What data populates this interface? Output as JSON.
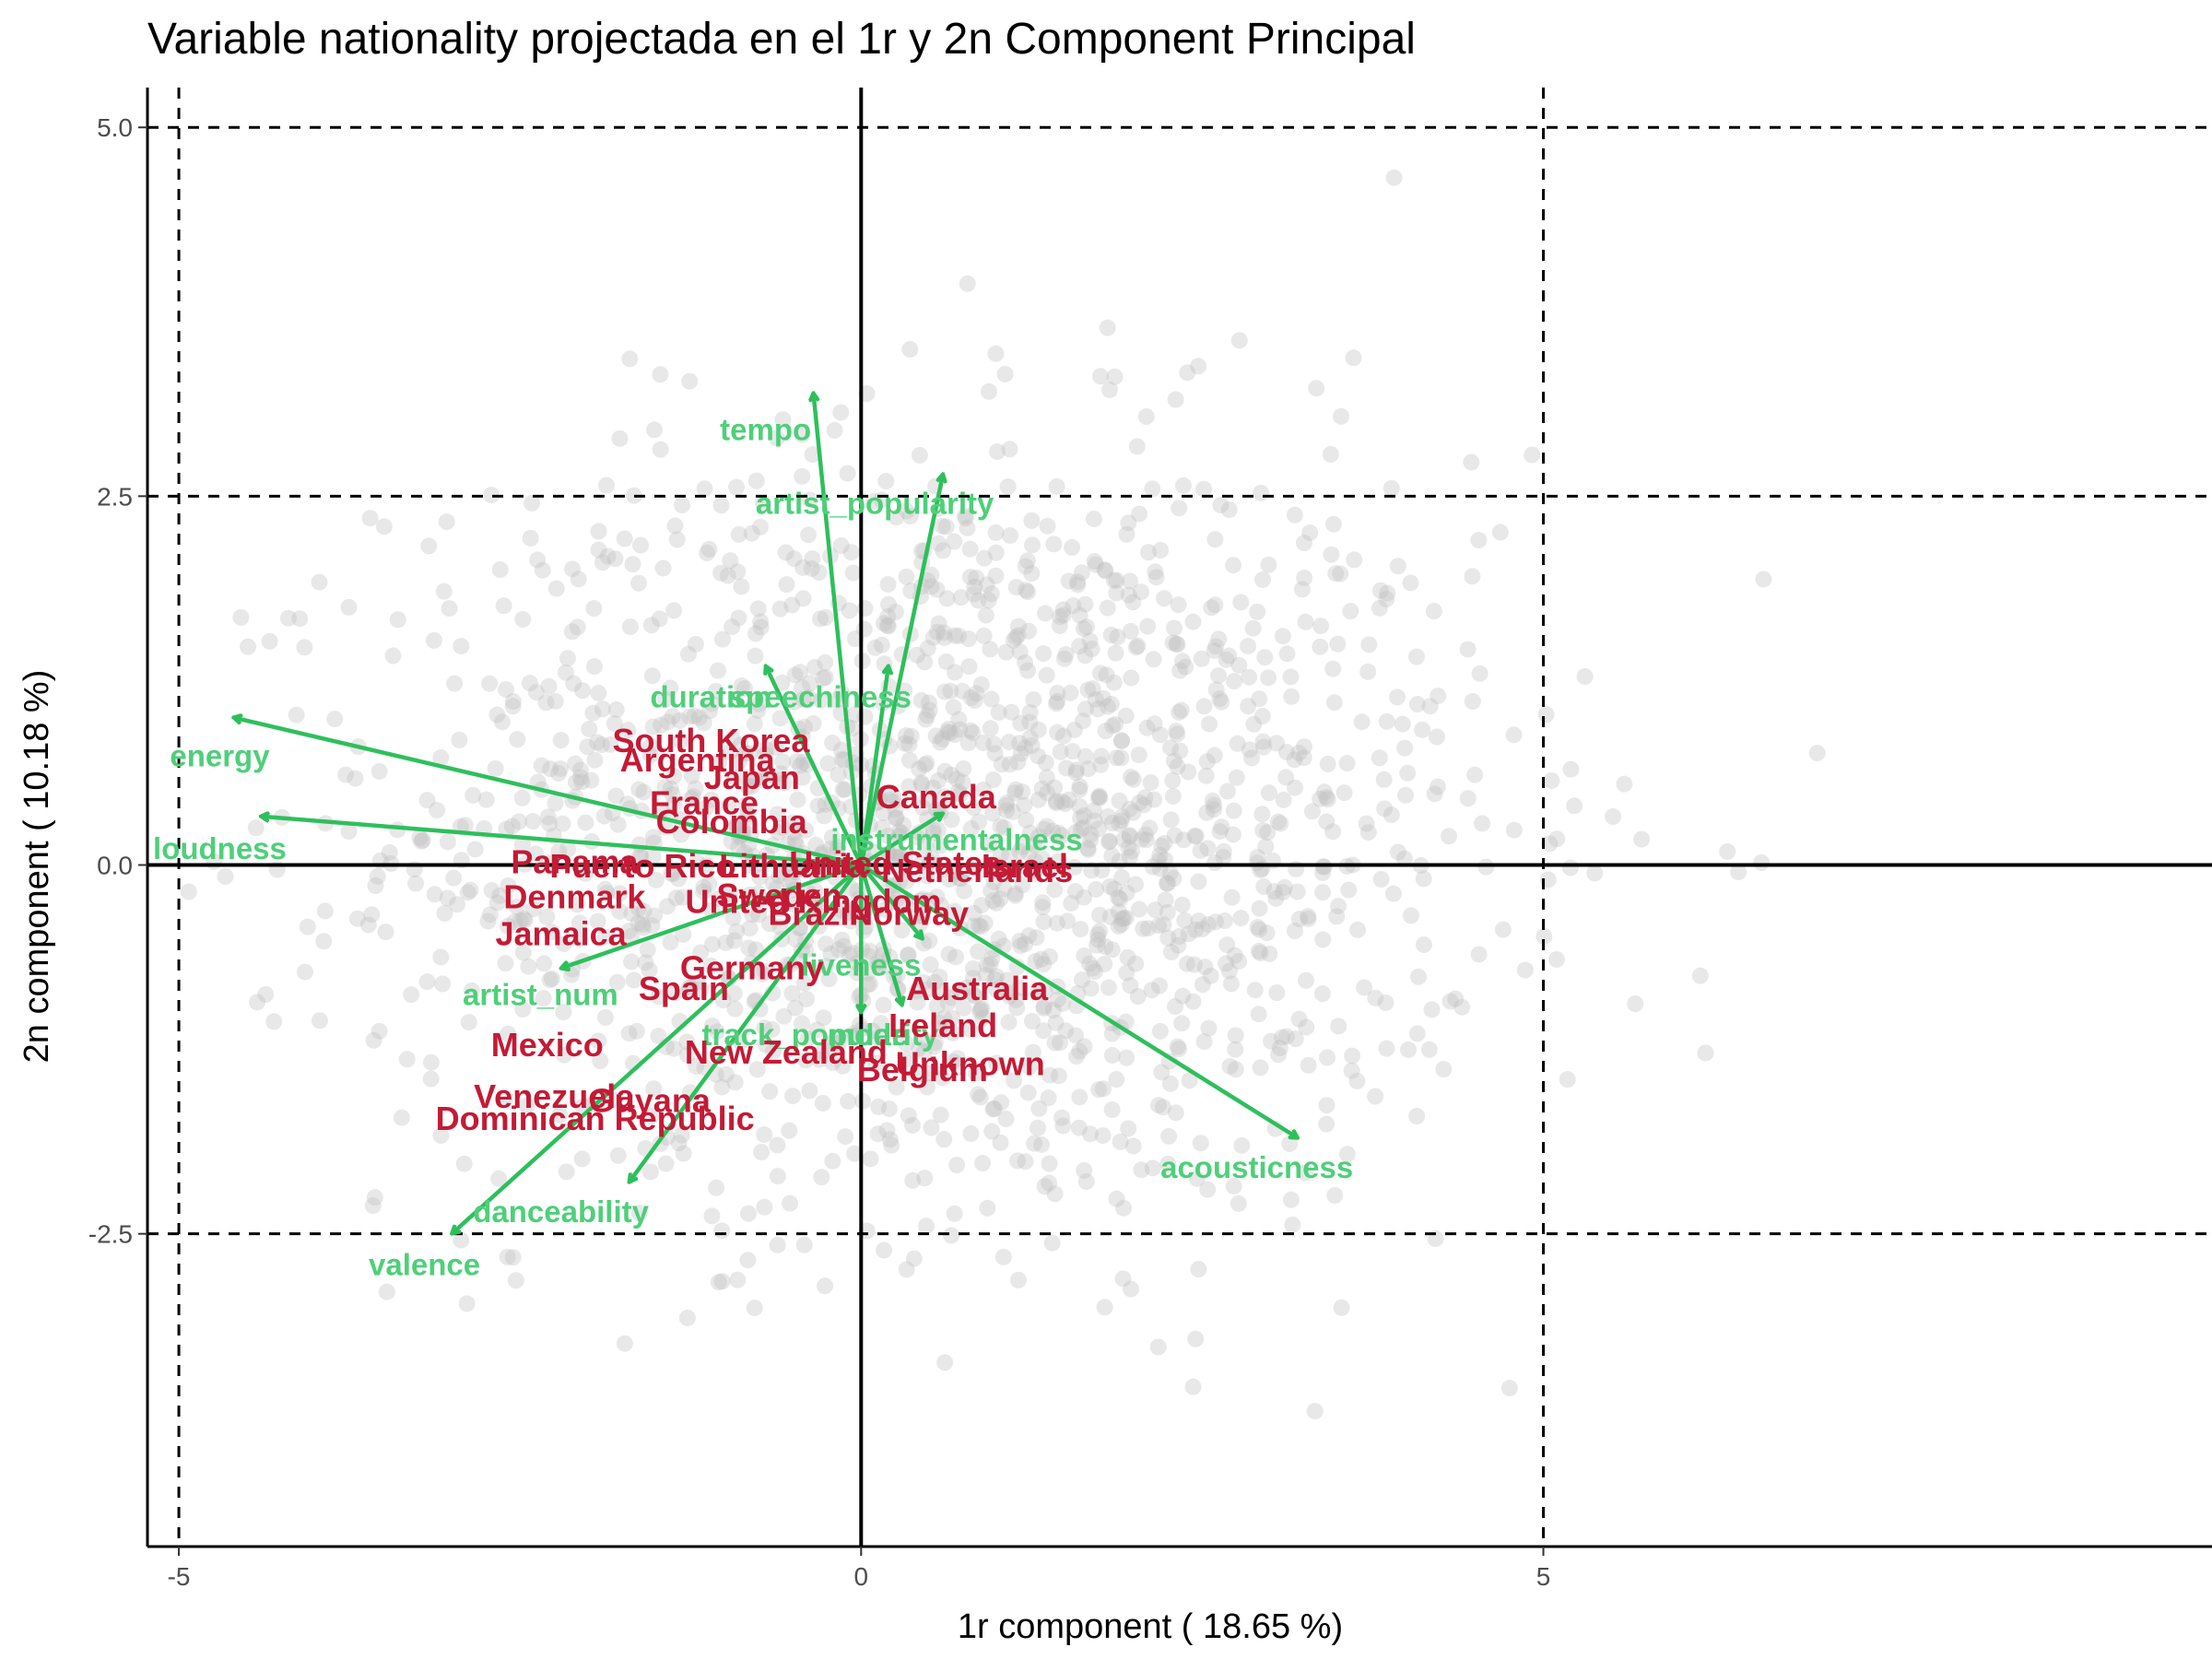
{
  "chart_data": {
    "type": "scatter",
    "title": "Variable nationality projectada en el 1r y 2n Component Principal",
    "xlabel": "1r component ( 18.65 %)",
    "ylabel": "2n component ( 10.18 %)",
    "xlim": [
      -5.23,
      9.9
    ],
    "ylim": [
      -4.62,
      5.27
    ],
    "x_ticks": [
      {
        "value": -5,
        "label": "-5"
      },
      {
        "value": 0,
        "label": "0"
      },
      {
        "value": 5,
        "label": "5"
      }
    ],
    "y_ticks": [
      {
        "value": 5,
        "label": "5.0"
      },
      {
        "value": 2.5,
        "label": "2.5"
      },
      {
        "value": 0,
        "label": "0.0"
      },
      {
        "value": -2.5,
        "label": "-2.5"
      }
    ],
    "reference_lines": {
      "solid_x": [
        0
      ],
      "solid_y": [
        0
      ],
      "dashed_x": [
        -5,
        5
      ],
      "dashed_y": [
        -2.5,
        2.5,
        5
      ]
    },
    "grid": false,
    "colors": {
      "points": "#bdbdbd",
      "arrows": "#2ebf5c",
      "variable_labels": "#4fcf7a",
      "category_labels": "#c41a35",
      "reference_lines": "#000000"
    },
    "point_cloud": {
      "x_mean": 0.6,
      "x_sd": 2.0,
      "y_mean": 0.2,
      "y_sd": 1.3,
      "count": 1800
    },
    "variables": [
      {
        "name": "tempo",
        "x": -0.35,
        "y": 3.2,
        "label_x": -0.7,
        "label_y": 2.88
      },
      {
        "name": "artist_popularity",
        "x": 0.6,
        "y": 2.65,
        "label_x": 0.1,
        "label_y": 2.38
      },
      {
        "name": "duration",
        "x": -0.7,
        "y": 1.35,
        "label_x": -1.1,
        "label_y": 1.07
      },
      {
        "name": "speechiness",
        "x": 0.2,
        "y": 1.35,
        "label_x": -0.3,
        "label_y": 1.07
      },
      {
        "name": "energy",
        "x": -4.6,
        "y": 1.0,
        "label_x": -4.7,
        "label_y": 0.67
      },
      {
        "name": "loudness",
        "x": -4.4,
        "y": 0.33,
        "label_x": -4.7,
        "label_y": 0.04
      },
      {
        "name": "artist_num",
        "x": -2.2,
        "y": -0.7,
        "label_x": -2.35,
        "label_y": -0.95
      },
      {
        "name": "liveness",
        "x": 0.45,
        "y": -0.5,
        "label_x": 0.0,
        "label_y": -0.75
      },
      {
        "name": "mode",
        "x": 0.3,
        "y": -0.95,
        "label_x": 0.05,
        "label_y": -1.22
      },
      {
        "name": "track_popularity",
        "x": 0.0,
        "y": -1.0,
        "label_x": -0.3,
        "label_y": -1.22
      },
      {
        "name": "instrumentalness",
        "x": 0.6,
        "y": 0.35,
        "label_x": 0.7,
        "label_y": 0.1
      },
      {
        "name": "danceability",
        "x": -1.7,
        "y": -2.15,
        "label_x": -2.2,
        "label_y": -2.42
      },
      {
        "name": "valence",
        "x": -3.0,
        "y": -2.5,
        "label_x": -3.2,
        "label_y": -2.78
      },
      {
        "name": "acousticness",
        "x": 3.2,
        "y": -1.85,
        "label_x": 2.9,
        "label_y": -2.12
      }
    ],
    "categories": [
      {
        "name": "South Korea",
        "x": -1.1,
        "y": 0.84
      },
      {
        "name": "Argentina",
        "x": -1.2,
        "y": 0.71
      },
      {
        "name": "Japan",
        "x": -0.8,
        "y": 0.59
      },
      {
        "name": "Canada",
        "x": 0.55,
        "y": 0.46
      },
      {
        "name": "France",
        "x": -1.15,
        "y": 0.42
      },
      {
        "name": "Colombia",
        "x": -0.95,
        "y": 0.29
      },
      {
        "name": "Panama",
        "x": -2.1,
        "y": 0.02
      },
      {
        "name": "Puerto Rico",
        "x": -1.6,
        "y": -0.01
      },
      {
        "name": "Lithuania",
        "x": -0.5,
        "y": -0.01
      },
      {
        "name": "United States",
        "x": 0.25,
        "y": 0.01
      },
      {
        "name": "Israel",
        "x": 1.2,
        "y": -0.01
      },
      {
        "name": "Netherlands",
        "x": 0.85,
        "y": -0.04
      },
      {
        "name": "Denmark",
        "x": -2.1,
        "y": -0.22
      },
      {
        "name": "United Kingdom",
        "x": -0.35,
        "y": -0.25
      },
      {
        "name": "Sweden",
        "x": -0.6,
        "y": -0.21
      },
      {
        "name": "Brazil",
        "x": -0.35,
        "y": -0.33
      },
      {
        "name": "Norway",
        "x": 0.35,
        "y": -0.33
      },
      {
        "name": "Jamaica",
        "x": -2.2,
        "y": -0.47
      },
      {
        "name": "Germany",
        "x": -0.8,
        "y": -0.7
      },
      {
        "name": "Spain",
        "x": -1.3,
        "y": -0.84
      },
      {
        "name": "Australia",
        "x": 0.85,
        "y": -0.84
      },
      {
        "name": "Ireland",
        "x": 0.6,
        "y": -1.09
      },
      {
        "name": "Mexico",
        "x": -2.3,
        "y": -1.22
      },
      {
        "name": "New Zealand",
        "x": -0.55,
        "y": -1.27
      },
      {
        "name": "Unknown",
        "x": 0.8,
        "y": -1.35
      },
      {
        "name": "Belgium",
        "x": 0.45,
        "y": -1.39
      },
      {
        "name": "Venezuela",
        "x": -2.25,
        "y": -1.57
      },
      {
        "name": "Guyana",
        "x": -1.55,
        "y": -1.6
      },
      {
        "name": "Dominican Republic",
        "x": -1.95,
        "y": -1.72
      }
    ]
  }
}
